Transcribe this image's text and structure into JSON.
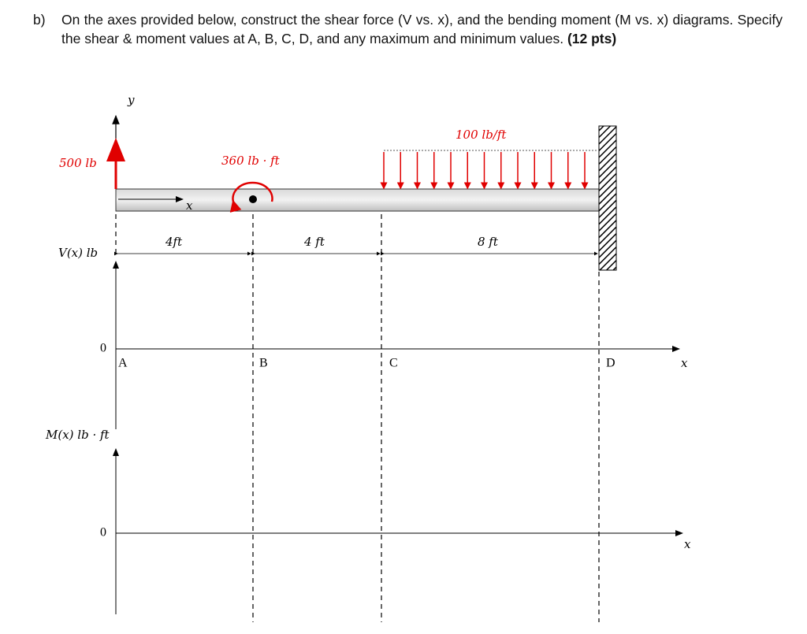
{
  "question": {
    "label": "b)",
    "text": "On the axes provided below, construct the shear force (V vs. x), and the bending moment (M vs. x) diagrams. Specify the shear & moment values at A, B, C, D, and any maximum and minimum values.",
    "points": "(12 pts)"
  },
  "beam": {
    "y_axis": "y",
    "reaction": "500 lb",
    "moment": "360 lb · ft",
    "load": "100 lb/ft",
    "x_axis": "x",
    "dimensions": [
      "4ft",
      "4 ft",
      "8 ft"
    ]
  },
  "shear_axes": {
    "label": "V(x) lb",
    "zero": "0",
    "points": [
      "A",
      "B",
      "C",
      "D"
    ],
    "x_axis": "x"
  },
  "moment_axes": {
    "label": "M(x) lb · ft",
    "zero": "0",
    "x_axis": "x"
  }
}
